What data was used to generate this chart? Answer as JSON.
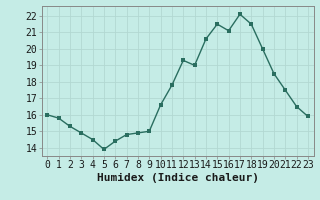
{
  "x": [
    0,
    1,
    2,
    3,
    4,
    5,
    6,
    7,
    8,
    9,
    10,
    11,
    12,
    13,
    14,
    15,
    16,
    17,
    18,
    19,
    20,
    21,
    22,
    23
  ],
  "y": [
    16.0,
    15.8,
    15.3,
    14.9,
    14.5,
    13.9,
    14.4,
    14.8,
    14.9,
    15.0,
    16.6,
    17.8,
    19.3,
    19.0,
    20.6,
    21.5,
    21.1,
    22.1,
    21.5,
    20.0,
    18.5,
    17.5,
    16.5,
    15.9
  ],
  "xlabel": "Humidex (Indice chaleur)",
  "ylim": [
    13.5,
    22.6
  ],
  "yticks": [
    14,
    15,
    16,
    17,
    18,
    19,
    20,
    21,
    22
  ],
  "xtick_labels": [
    "0",
    "1",
    "2",
    "3",
    "4",
    "5",
    "6",
    "7",
    "8",
    "9",
    "10",
    "11",
    "12",
    "13",
    "14",
    "15",
    "16",
    "17",
    "18",
    "19",
    "20",
    "21",
    "22",
    "23"
  ],
  "line_color": "#2a6e60",
  "marker_color": "#2a6e60",
  "bg_color": "#c5ece6",
  "grid_color": "#b2d8d2",
  "xlabel_fontsize": 8,
  "tick_fontsize": 7,
  "marker_size": 2.5,
  "line_width": 1.0
}
